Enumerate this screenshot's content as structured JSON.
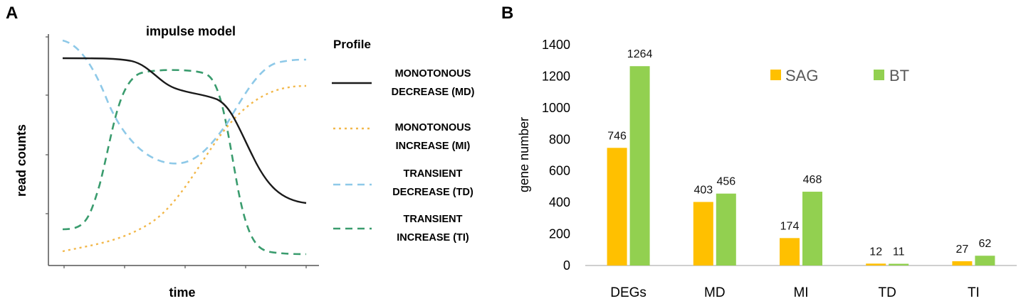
{
  "panel_a": {
    "letter": "A",
    "title": "impulse model",
    "xlabel": "time",
    "ylabel": "read counts",
    "legend_title": "Profile",
    "legend": [
      {
        "line1": "MONOTONOUS",
        "line2": "DECREASE (MD)",
        "color": "#1a1a1a",
        "dash": "solid"
      },
      {
        "line1": "MONOTONOUS",
        "line2": "INCREASE (MI)",
        "color": "#f2b84b",
        "dash": "dot"
      },
      {
        "line1": "TRANSIENT",
        "line2": "DECREASE (TD)",
        "color": "#8ec9e8",
        "dash": "dash"
      },
      {
        "line1": "TRANSIENT",
        "line2": "INCREASE (TI)",
        "color": "#3a9c6e",
        "dash": "dash"
      }
    ]
  },
  "panel_b": {
    "letter": "B"
  },
  "chart_data": {
    "type": "bar",
    "categories": [
      "DEGs",
      "MD",
      "MI",
      "TD",
      "TI"
    ],
    "series": [
      {
        "name": "SAG",
        "color": "#ffc000",
        "values": [
          746,
          403,
          174,
          12,
          27
        ]
      },
      {
        "name": "BT",
        "color": "#92d050",
        "values": [
          1264,
          456,
          468,
          11,
          62
        ]
      }
    ],
    "title": "",
    "xlabel": "",
    "ylabel": "gene number",
    "ylim": [
      0,
      1400
    ],
    "yticks": [
      "0",
      "200",
      "400",
      "600",
      "800",
      "1000",
      "1200",
      "1400"
    ],
    "grid": false,
    "legend_position": "top-right"
  }
}
